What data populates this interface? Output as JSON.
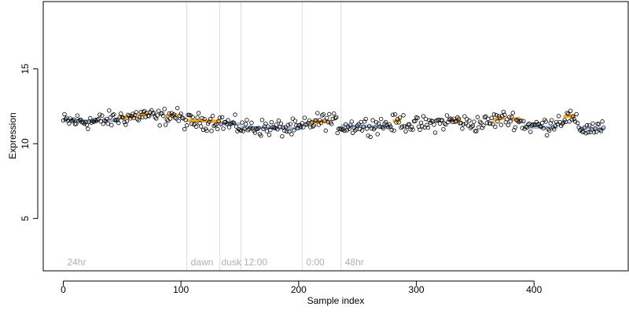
{
  "chart_data": {
    "type": "scatter",
    "title": "",
    "xlabel": "Sample index",
    "ylabel": "Expression",
    "xlim": [
      -17,
      480
    ],
    "ylim": [
      1.5,
      19.5
    ],
    "xticks": [
      0,
      100,
      200,
      300,
      400
    ],
    "xtick_labels": [
      "0",
      "100",
      "200",
      "300",
      "400"
    ],
    "yticks": [
      5,
      10,
      15
    ],
    "ytick_labels": [
      "5",
      "10",
      "15"
    ],
    "grid": false,
    "n_points": 460,
    "group_lines": [
      105,
      133,
      151,
      203,
      236
    ],
    "group_labels": [
      {
        "text": "24hr",
        "x": 2
      },
      {
        "text": "dawn",
        "x": 107
      },
      {
        "text": "dusk",
        "x": 133
      },
      {
        "text": "12:00",
        "x": 152
      },
      {
        "text": "0:00",
        "x": 205
      },
      {
        "text": "48hr",
        "x": 238
      }
    ],
    "trend_segments": [
      {
        "x": [
          0,
          30
        ],
        "y": [
          11.6,
          11.5
        ],
        "color": "#a4b8dc"
      },
      {
        "x": [
          35,
          48
        ],
        "y": [
          11.55,
          11.5
        ],
        "color": "#a4b8dc"
      },
      {
        "x": [
          48,
          62
        ],
        "y": [
          11.75,
          11.8
        ],
        "color": "#f5a623"
      },
      {
        "x": [
          64,
          72
        ],
        "y": [
          11.9,
          12.05
        ],
        "color": "#f5a623"
      },
      {
        "x": [
          87,
          97
        ],
        "y": [
          11.85,
          11.95
        ],
        "color": "#f5a623"
      },
      {
        "x": [
          105,
          133
        ],
        "y": [
          11.55,
          11.5
        ],
        "color": "#f5a623"
      },
      {
        "x": [
          133,
          151
        ],
        "y": [
          11.35,
          11.3
        ],
        "color": "#a4b8dc"
      },
      {
        "x": [
          151,
          203
        ],
        "y": [
          11.1,
          11.0
        ],
        "color": "#a4b8dc"
      },
      {
        "x": [
          210,
          225
        ],
        "y": [
          11.45,
          11.5
        ],
        "color": "#f5a623"
      },
      {
        "x": [
          236,
          280
        ],
        "y": [
          11.2,
          11.1
        ],
        "color": "#a4b8dc"
      },
      {
        "x": [
          280,
          287
        ],
        "y": [
          11.5,
          11.6
        ],
        "color": "#f5a623"
      },
      {
        "x": [
          330,
          338
        ],
        "y": [
          11.55,
          11.6
        ],
        "color": "#f5a623"
      },
      {
        "x": [
          365,
          375
        ],
        "y": [
          11.6,
          11.7
        ],
        "color": "#f5a623"
      },
      {
        "x": [
          380,
          388
        ],
        "y": [
          11.6,
          11.7
        ],
        "color": "#f5a623"
      },
      {
        "x": [
          395,
          420
        ],
        "y": [
          11.1,
          11.1
        ],
        "color": "#a4b8dc"
      },
      {
        "x": [
          425,
          435
        ],
        "y": [
          11.8,
          11.9
        ],
        "color": "#f5a623"
      },
      {
        "x": [
          438,
          460
        ],
        "y": [
          11.05,
          11.0
        ],
        "color": "#a4b8dc"
      }
    ],
    "baseline_anchors": [
      [
        0,
        11.5
      ],
      [
        30,
        11.5
      ],
      [
        48,
        11.7
      ],
      [
        70,
        11.95
      ],
      [
        80,
        11.7
      ],
      [
        93,
        11.95
      ],
      [
        105,
        11.45
      ],
      [
        133,
        11.5
      ],
      [
        140,
        11.3
      ],
      [
        152,
        11.1
      ],
      [
        200,
        11.0
      ],
      [
        215,
        11.5
      ],
      [
        226,
        11.55
      ],
      [
        236,
        11.15
      ],
      [
        280,
        11.3
      ],
      [
        286,
        11.5
      ],
      [
        300,
        11.2
      ],
      [
        333,
        11.55
      ],
      [
        345,
        11.3
      ],
      [
        360,
        11.4
      ],
      [
        370,
        11.65
      ],
      [
        382,
        11.65
      ],
      [
        395,
        11.2
      ],
      [
        410,
        11.2
      ],
      [
        430,
        11.8
      ],
      [
        440,
        11.0
      ],
      [
        460,
        11.1
      ]
    ],
    "point_spread": 0.55,
    "point_style": {
      "shape": "open-circle",
      "stroke": "#000000"
    },
    "colors": {
      "highlight": "#f5a623",
      "baseline": "#a4b8dc",
      "group_line": "#dcdcdc",
      "group_label": "#b0b0b0"
    }
  }
}
